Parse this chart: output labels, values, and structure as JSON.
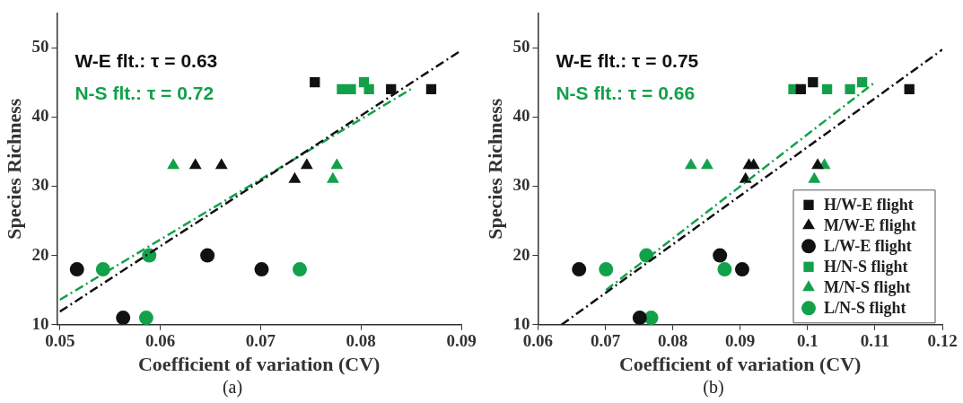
{
  "chart_data": [
    {
      "type": "scatter",
      "title": "(a)",
      "xlabel": "Coefficient of variation (CV)",
      "ylabel": "Species Richness",
      "xlim": [
        0.0497,
        0.09
      ],
      "xticks": [
        0.05,
        0.06,
        0.07,
        0.08,
        0.09
      ],
      "ylim": [
        10,
        55
      ],
      "yticks": [
        10,
        20,
        30,
        40,
        50
      ],
      "grid": false,
      "legend": false,
      "annotations": [
        "W-E flt.: τ = 0.63",
        "N-S flt.: τ = 0.72"
      ],
      "series": [
        {
          "color": "#111111",
          "marker": "square",
          "x": [
            0.0754,
            0.083,
            0.087
          ],
          "values": [
            45,
            44,
            44
          ]
        },
        {
          "color": "#111111",
          "marker": "triangle",
          "x": [
            0.0635,
            0.0661,
            0.0746,
            0.0734
          ],
          "values": [
            33,
            33,
            33,
            31
          ]
        },
        {
          "color": "#111111",
          "marker": "circle",
          "x": [
            0.0517,
            0.0563,
            0.0647,
            0.0701
          ],
          "values": [
            18,
            11,
            20,
            18
          ]
        },
        {
          "color": "#12a14a",
          "marker": "square",
          "x": [
            0.0781,
            0.079,
            0.0803,
            0.0808
          ],
          "values": [
            44,
            44,
            45,
            44
          ]
        },
        {
          "color": "#12a14a",
          "marker": "triangle",
          "x": [
            0.0613,
            0.0776,
            0.0772
          ],
          "values": [
            33,
            33,
            31
          ]
        },
        {
          "color": "#12a14a",
          "marker": "circle",
          "x": [
            0.0543,
            0.0589,
            0.0586,
            0.0739
          ],
          "values": [
            18,
            20,
            11,
            18
          ]
        },
        {
          "type": "line",
          "color": "#111111",
          "line_style": "dashed",
          "marker": "none",
          "x": [
            0.05,
            0.09
          ],
          "values": [
            11.9,
            49.6
          ]
        },
        {
          "type": "line",
          "color": "#12a14a",
          "line_style": "dashed",
          "marker": "none",
          "x": [
            0.05,
            0.0851
          ],
          "values": [
            13.6,
            44.1
          ]
        }
      ]
    },
    {
      "type": "scatter",
      "title": "(b)",
      "xlabel": "Coefficient of variation (CV)",
      "ylabel": "Species Richness",
      "xlim": [
        0.06,
        0.12
      ],
      "xticks": [
        0.06,
        0.07,
        0.08,
        0.09,
        0.1,
        0.11,
        0.12
      ],
      "ylim": [
        10,
        55
      ],
      "yticks": [
        10,
        20,
        30,
        40,
        50
      ],
      "grid": false,
      "legend": "bottom right",
      "annotations": [
        "W-E flt.: τ = 0.75",
        "N-S flt.: τ = 0.66"
      ],
      "series": [
        {
          "name": "H/W-E flight",
          "color": "#111111",
          "marker": "square",
          "x": [
            0.1008,
            0.1151,
            0.099
          ],
          "values": [
            45,
            44,
            44
          ]
        },
        {
          "name": "M/W-E flight",
          "color": "#111111",
          "marker": "triangle",
          "x": [
            0.0913,
            0.092,
            0.0908,
            0.1015
          ],
          "values": [
            33,
            33,
            31,
            33
          ]
        },
        {
          "name": "L/W-E flight",
          "color": "#111111",
          "marker": "circle",
          "x": [
            0.0661,
            0.0751,
            0.087,
            0.0903
          ],
          "values": [
            18,
            11,
            20,
            18
          ]
        },
        {
          "name": "H/N-S flight",
          "color": "#12a14a",
          "marker": "square",
          "x": [
            0.0979,
            0.1029,
            0.1063,
            0.1081
          ],
          "values": [
            44,
            44,
            44,
            45
          ]
        },
        {
          "name": "M/N-S flight",
          "color": "#12a14a",
          "marker": "triangle",
          "x": [
            0.0827,
            0.0851,
            0.1025,
            0.101
          ],
          "values": [
            33,
            33,
            33,
            31
          ]
        },
        {
          "name": "L/N-S flight",
          "color": "#12a14a",
          "marker": "circle",
          "x": [
            0.0701,
            0.0761,
            0.0768,
            0.0877
          ],
          "values": [
            18,
            20,
            11,
            18
          ]
        },
        {
          "type": "line",
          "color": "#111111",
          "line_style": "dashed",
          "marker": "none",
          "x": [
            0.0635,
            0.12
          ],
          "values": [
            10,
            49.7
          ]
        },
        {
          "type": "line",
          "color": "#12a14a",
          "line_style": "dashed",
          "marker": "none",
          "x": [
            0.0701,
            0.11
          ],
          "values": [
            15,
            45
          ]
        }
      ]
    }
  ]
}
